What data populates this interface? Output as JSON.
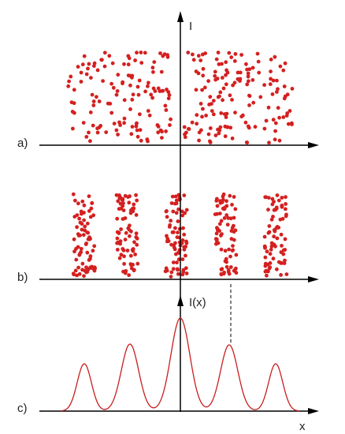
{
  "labels": {
    "intensity": "I",
    "panel_a": "a)",
    "panel_b": "b)",
    "panel_c": "c)",
    "intensity_x": "I(x)",
    "x_axis": "x"
  }
}
